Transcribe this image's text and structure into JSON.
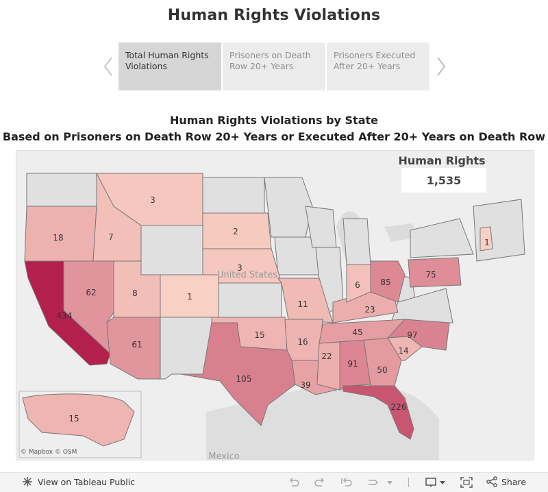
{
  "page": {
    "title": "Human Rights Violations"
  },
  "story_points": [
    {
      "label": "Total Human Rights Violations",
      "active": true
    },
    {
      "label": "Prisoners on Death Row 20+ Years",
      "active": false
    },
    {
      "label": "Prisoners Executed After 20+ Years",
      "active": false
    }
  ],
  "chart_data": {
    "type": "map",
    "title_line1": "Human Rights Violations by State",
    "title_line2": "Based on Prisoners on Death Row 20+ Years or Executed After 20+ Years on Death Row",
    "kpi": {
      "label": "Human Rights Violations",
      "value": "1,535"
    },
    "basemap_labels": {
      "country": "United States",
      "neighbor": "Mexico"
    },
    "attribution": "© Mapbox  © OSM",
    "color_scale": {
      "low": "#f9d0c4",
      "high": "#b3204e"
    },
    "states": [
      {
        "state": "California",
        "value": 434
      },
      {
        "state": "Florida",
        "value": 226
      },
      {
        "state": "Texas",
        "value": 105
      },
      {
        "state": "North Carolina",
        "value": 97
      },
      {
        "state": "Alabama",
        "value": 91
      },
      {
        "state": "Ohio",
        "value": 85
      },
      {
        "state": "Pennsylvania",
        "value": 75
      },
      {
        "state": "Nevada",
        "value": 62
      },
      {
        "state": "Arizona",
        "value": 61
      },
      {
        "state": "Georgia",
        "value": 50
      },
      {
        "state": "Tennessee",
        "value": 45
      },
      {
        "state": "Louisiana",
        "value": 39
      },
      {
        "state": "Kentucky",
        "value": 23
      },
      {
        "state": "Mississippi",
        "value": 22
      },
      {
        "state": "Oregon",
        "value": 18
      },
      {
        "state": "Arkansas",
        "value": 16
      },
      {
        "state": "Oklahoma",
        "value": 15
      },
      {
        "state": "Alaska / Hawaii / other",
        "value": 15
      },
      {
        "state": "South Carolina",
        "value": 14
      },
      {
        "state": "Missouri",
        "value": 11
      },
      {
        "state": "Utah",
        "value": 8
      },
      {
        "state": "Idaho",
        "value": 7
      },
      {
        "state": "Indiana",
        "value": 6
      },
      {
        "state": "Montana",
        "value": 3
      },
      {
        "state": "Nebraska",
        "value": 3
      },
      {
        "state": "South Dakota",
        "value": 2
      },
      {
        "state": "Colorado",
        "value": 1
      },
      {
        "state": "New Hampshire",
        "value": 1
      }
    ]
  },
  "footer": {
    "view_label": "View on Tableau Public",
    "share_label": "Share"
  }
}
